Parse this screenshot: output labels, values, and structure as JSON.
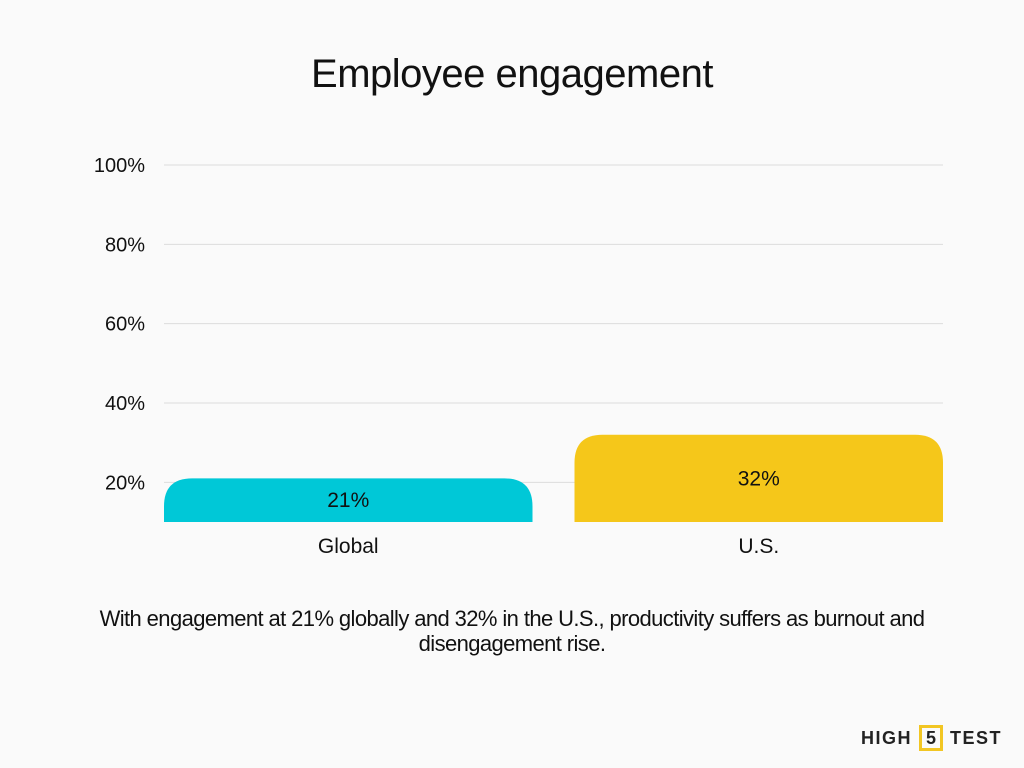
{
  "chart_data": {
    "type": "bar",
    "title": "Employee engagement",
    "categories": [
      "Global",
      "U.S."
    ],
    "values": [
      21,
      32
    ],
    "value_labels": [
      "21%",
      "32%"
    ],
    "colors": [
      "#00c8d7",
      "#f5c71a"
    ],
    "xlabel": "",
    "ylabel": "",
    "ylim": [
      10,
      100
    ],
    "yticks": [
      20,
      40,
      60,
      80,
      100
    ],
    "ytick_labels": [
      "20%",
      "40%",
      "60%",
      "80%",
      "100%"
    ],
    "grid": true,
    "legend": "none"
  },
  "caption": "With engagement at 21% globally and 32% in the U.S., productivity suffers as burnout and disengagement rise.",
  "logo": {
    "left": "HIGH",
    "middle": "5",
    "right": "TEST",
    "accent": "#f2c623"
  }
}
